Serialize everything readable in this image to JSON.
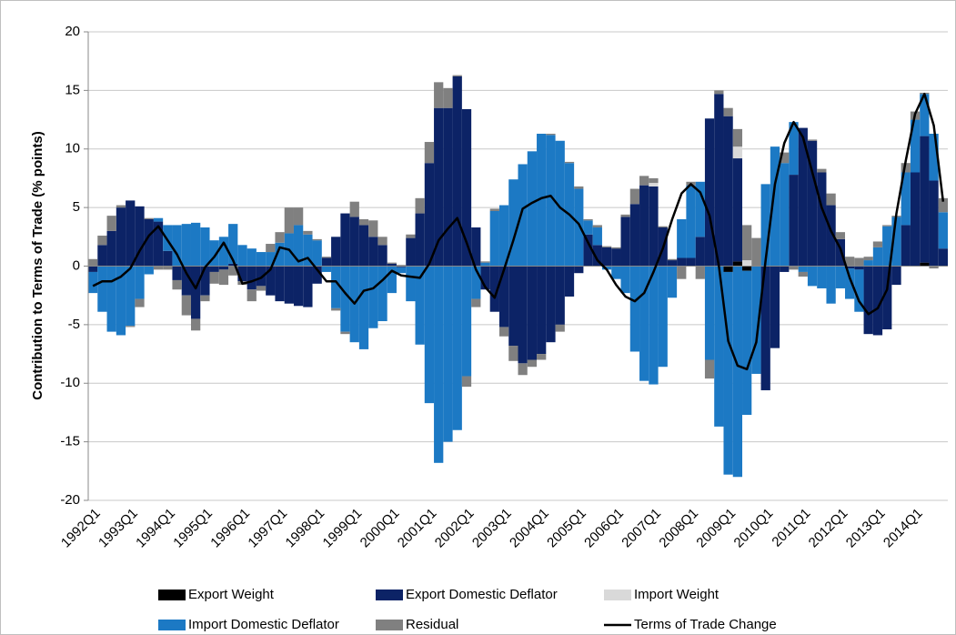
{
  "chart_data": {
    "type": "bar",
    "stacked": true,
    "grid": true,
    "legend": "bottom",
    "y_label": "Contribution to Terms of Trade (% points)",
    "ylim": [
      -20,
      20
    ],
    "yticks": [
      -20,
      -15,
      -10,
      -5,
      0,
      5,
      10,
      15,
      20
    ],
    "categories": [
      "1992Q1",
      null,
      null,
      null,
      "1993Q1",
      null,
      null,
      null,
      "1994Q1",
      null,
      null,
      null,
      "1995Q1",
      null,
      null,
      null,
      "1996Q1",
      null,
      null,
      null,
      "1997Q1",
      null,
      null,
      null,
      "1998Q1",
      null,
      null,
      null,
      "1999Q1",
      null,
      null,
      null,
      "2000Q1",
      null,
      null,
      null,
      "2001Q1",
      null,
      null,
      null,
      "2002Q1",
      null,
      null,
      null,
      "2003Q1",
      null,
      null,
      null,
      "2004Q1",
      null,
      null,
      null,
      "2005Q1",
      null,
      null,
      null,
      "2006Q1",
      null,
      null,
      null,
      "2007Q1",
      null,
      null,
      null,
      "2008Q1",
      null,
      null,
      null,
      "2009Q1",
      null,
      null,
      null,
      "2010Q1",
      null,
      null,
      null,
      "2011Q1",
      null,
      null,
      null,
      "2012Q1",
      null,
      null,
      null,
      "2013Q1",
      null,
      null,
      null,
      "2014Q1",
      null,
      null,
      null
    ],
    "series": [
      {
        "name": "Export Weight",
        "color": "#000000",
        "values": [
          0,
          0,
          0,
          0,
          0,
          0,
          0,
          0,
          0,
          0,
          0,
          0,
          0,
          0,
          0,
          0,
          0,
          0,
          0,
          0,
          0,
          0,
          0,
          0,
          0,
          0,
          0,
          0,
          0,
          0,
          0,
          0,
          0,
          0,
          0,
          0,
          0,
          0,
          0,
          0,
          0,
          0,
          0,
          0,
          0,
          0,
          0,
          0,
          0,
          0,
          0,
          0,
          0,
          0,
          0,
          0,
          0,
          0,
          0,
          0,
          0,
          0,
          0,
          0,
          0,
          0,
          0,
          0,
          -0.5,
          0.4,
          -0.4,
          0,
          0,
          0,
          0,
          0,
          0,
          0,
          0,
          0,
          0,
          0,
          0,
          0,
          0,
          0,
          0,
          0,
          0,
          0.3,
          0,
          0
        ]
      },
      {
        "name": "Export Domestic Deflator",
        "color": "#0c2366",
        "values": [
          -0.5,
          1.8,
          3.0,
          5.0,
          5.6,
          5.1,
          4.0,
          3.8,
          1.3,
          -1.2,
          -2.5,
          -4.5,
          -2.5,
          -0.5,
          -0.3,
          0.2,
          -1.3,
          -2.0,
          -1.7,
          -2.5,
          -3.0,
          -3.2,
          -3.4,
          -3.5,
          -1.5,
          0.7,
          2.5,
          4.5,
          4.2,
          3.5,
          2.5,
          1.8,
          0.2,
          -0.1,
          2.4,
          4.5,
          8.8,
          13.5,
          13.5,
          16.2,
          13.4,
          3.3,
          -2.0,
          -3.9,
          -5.2,
          -6.8,
          -8.3,
          -8.0,
          -7.5,
          -6.5,
          -5.0,
          -2.6,
          -0.6,
          2.7,
          1.8,
          1.6,
          1.5,
          4.2,
          5.3,
          6.9,
          6.8,
          3.3,
          0.5,
          0.7,
          0.7,
          2.5,
          12.6,
          14.7,
          12.8,
          8.8,
          0,
          0,
          -10.6,
          -7.0,
          -0.5,
          7.8,
          11.8,
          10.7,
          8.0,
          5.2,
          2.3,
          -0.2,
          -0.3,
          -5.8,
          -5.9,
          -5.4,
          -1.6,
          3.5,
          8.0,
          10.8,
          7.3,
          1.5
        ]
      },
      {
        "name": "Import Weight",
        "color": "#d9d9d9",
        "values": [
          0,
          0,
          0,
          0,
          0,
          0,
          0,
          0,
          0,
          0,
          0,
          0,
          0,
          0,
          0,
          0,
          0,
          0,
          0,
          0,
          0,
          0,
          0,
          0,
          0,
          0,
          0,
          0,
          0,
          0,
          0,
          0,
          0,
          0,
          0,
          0,
          0,
          0,
          0,
          0,
          0,
          0,
          0,
          0,
          0,
          0,
          0,
          0,
          0,
          0,
          0,
          0,
          0,
          0,
          0,
          0,
          0,
          0,
          0,
          0,
          0.3,
          0,
          0,
          0,
          0,
          0,
          0,
          0,
          0,
          1.0,
          0.5,
          0,
          0,
          0,
          0,
          0,
          0,
          0,
          0,
          0,
          0,
          0,
          0,
          0,
          0,
          0,
          0,
          0,
          0,
          0,
          0,
          0
        ]
      },
      {
        "name": "Import Domestic Deflator",
        "color": "#1c79c4",
        "values": [
          -1.8,
          -3.9,
          -5.6,
          -5.9,
          -5.1,
          -2.8,
          -0.7,
          0.3,
          2.2,
          3.5,
          3.6,
          3.7,
          3.3,
          2.2,
          2.5,
          3.4,
          1.8,
          1.5,
          1.2,
          1.2,
          2.0,
          2.8,
          3.5,
          2.7,
          2.2,
          -0.5,
          -3.6,
          -5.6,
          -6.5,
          -7.1,
          -5.3,
          -4.7,
          -2.3,
          -0.5,
          -3.0,
          -6.7,
          -11.7,
          -16.8,
          -15.0,
          -14.0,
          -9.4,
          -2.8,
          0.3,
          4.7,
          5.2,
          7.4,
          8.7,
          9.8,
          11.3,
          11.2,
          10.7,
          8.8,
          6.6,
          1.2,
          1.5,
          -0.3,
          -1.1,
          -2.3,
          -7.3,
          -9.8,
          -10.1,
          -8.6,
          -2.7,
          3.3,
          6.2,
          4.7,
          -8.0,
          -13.7,
          -17.3,
          -18.0,
          -12.3,
          -9.2,
          7.0,
          10.2,
          8.8,
          4.5,
          -0.5,
          -1.7,
          -1.9,
          -3.2,
          -1.9,
          -2.6,
          -3.6,
          0.5,
          1.6,
          3.4,
          4.2,
          4.5,
          4.5,
          3.6,
          4.0,
          3.1
        ]
      },
      {
        "name": "Residual",
        "color": "#808080",
        "values": [
          0.6,
          0.8,
          1.3,
          0.2,
          -0.1,
          -0.7,
          0.1,
          -0.3,
          -0.3,
          -0.8,
          -1.7,
          -1.0,
          -0.5,
          -1.0,
          -1.3,
          -0.8,
          -0.3,
          -1.0,
          -0.4,
          0.7,
          0.9,
          2.2,
          1.5,
          0.3,
          0.1,
          0.1,
          -0.2,
          -0.2,
          1.3,
          0.5,
          1.4,
          0.7,
          0.1,
          0.1,
          0.3,
          1.3,
          1.8,
          2.2,
          1.7,
          0.1,
          -0.9,
          -0.7,
          0.1,
          0.2,
          -0.8,
          -1.3,
          -1.0,
          -0.6,
          -0.5,
          0.1,
          -0.6,
          0.1,
          0.2,
          0.1,
          0.2,
          0.1,
          0.1,
          0.2,
          1.3,
          0.8,
          0.4,
          0.1,
          0.1,
          -1.1,
          0.3,
          -1.1,
          -1.6,
          0.3,
          0.7,
          1.5,
          3.0,
          2.4,
          0,
          0,
          0.9,
          -0.3,
          -0.4,
          0.1,
          0.3,
          1.0,
          0.6,
          0.8,
          0.7,
          0.3,
          0.5,
          0.1,
          0.1,
          0.8,
          0.7,
          0.1,
          -0.2,
          1.2
        ]
      },
      {
        "name": "Terms of Trade Change",
        "type": "line",
        "color": "#000000",
        "values": [
          -1.7,
          -1.3,
          -1.3,
          -0.9,
          -0.2,
          1.3,
          2.6,
          3.4,
          2.2,
          1.0,
          -0.6,
          -1.9,
          -0.1,
          0.8,
          2.0,
          0.5,
          -1.5,
          -1.3,
          -1.0,
          -0.3,
          1.6,
          1.4,
          0.4,
          0.7,
          -0.3,
          -1.3,
          -1.3,
          -2.3,
          -3.2,
          -2.1,
          -1.9,
          -1.2,
          -0.4,
          -0.8,
          -0.9,
          -1.0,
          0.2,
          2.2,
          3.2,
          4.1,
          2.0,
          -0.3,
          -1.8,
          -2.7,
          -0.3,
          2.2,
          4.9,
          5.4,
          5.8,
          6.0,
          5.0,
          4.4,
          3.6,
          2.0,
          0.5,
          -0.3,
          -1.6,
          -2.6,
          -3.0,
          -2.3,
          -0.5,
          1.5,
          4.0,
          6.2,
          7.0,
          6.3,
          4.3,
          0.0,
          -6.4,
          -8.5,
          -8.8,
          -6.5,
          0.5,
          7.0,
          10.5,
          12.3,
          11.0,
          8.0,
          5.0,
          3.0,
          1.5,
          -1.0,
          -3.0,
          -4.1,
          -3.6,
          -2.0,
          4.5,
          9.0,
          13.0,
          14.7,
          12.0,
          5.5
        ]
      }
    ]
  }
}
